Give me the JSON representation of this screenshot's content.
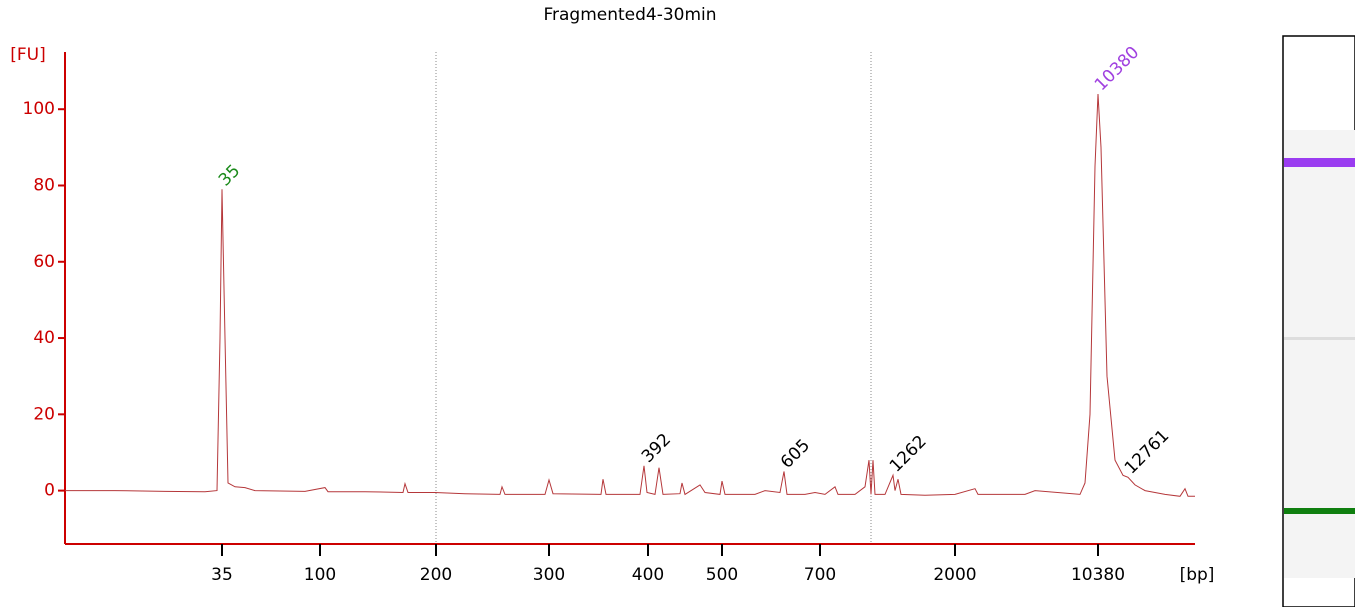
{
  "chart_data": {
    "type": "line",
    "title": "Fragmented4-30min",
    "ylabel": "[FU]",
    "xlabel": "[bp]",
    "axis_color": "#cc0000",
    "xlim": [
      0,
      113
    ],
    "ylim": [
      -14,
      115
    ],
    "yticks": [
      0,
      20,
      40,
      60,
      80,
      100
    ],
    "xticks": [
      {
        "value": 15.7,
        "label": "35"
      },
      {
        "value": 25.5,
        "label": "100"
      },
      {
        "value": 37.1,
        "label": "200"
      },
      {
        "value": 48.4,
        "label": "300"
      },
      {
        "value": 58.3,
        "label": "400"
      },
      {
        "value": 65.7,
        "label": "500"
      },
      {
        "value": 75.5,
        "label": "700"
      },
      {
        "value": 89,
        "label": "2000"
      },
      {
        "value": 103.3,
        "label": "10380"
      }
    ],
    "markers": [
      37.1,
      80.6
    ],
    "series": [
      {
        "color": "#b5373a",
        "x": [
          0,
          5,
          10,
          14,
          15.2,
          15.5,
          15.7,
          16,
          16.3,
          17,
          18,
          19,
          24,
          26,
          26.3,
          30,
          33.8,
          34,
          34.3,
          37,
          40,
          43.5,
          43.7,
          44,
          48,
          48.4,
          48.8,
          53.6,
          53.8,
          54.1,
          57.5,
          57.9,
          58.2,
          59,
          59.4,
          59.8,
          61.5,
          61.7,
          62,
          63.5,
          64,
          65.5,
          65.7,
          66,
          69,
          70,
          71.5,
          71.9,
          72.2,
          74,
          75,
          76,
          77,
          77.3,
          79,
          80,
          80.4,
          80.6,
          80.8,
          81,
          82,
          82.8,
          83,
          83.3,
          83.6,
          86,
          89,
          91,
          91.3,
          96,
          97,
          101.5,
          102,
          102.5,
          103,
          103.3,
          103.6,
          104.2,
          105,
          105.8,
          106.3,
          107,
          108,
          110,
          111.5,
          112,
          112.3,
          113
        ],
        "values": [
          0,
          0,
          -0.2,
          -0.3,
          0,
          40,
          79,
          40,
          2,
          1,
          0.8,
          0,
          -0.2,
          0.8,
          -0.3,
          -0.3,
          -0.5,
          1.8,
          -0.5,
          -0.5,
          -0.8,
          -1,
          1,
          -1,
          -1,
          2.8,
          -0.8,
          -1,
          3,
          -1,
          -1,
          6.5,
          -0.5,
          -1,
          6,
          -1,
          -0.8,
          2,
          -1,
          1.5,
          -0.5,
          -1,
          2.5,
          -1,
          -1,
          0,
          -0.5,
          5,
          -1,
          -1,
          -0.5,
          -1,
          1,
          -1,
          -1,
          1,
          8,
          -1,
          8,
          -1,
          -1,
          4,
          0,
          3,
          -1,
          -1.2,
          -1,
          0.5,
          -1,
          -1,
          0,
          -1,
          2,
          20,
          85,
          104,
          90,
          30,
          8,
          4,
          3.5,
          1.5,
          0,
          -1,
          -1.5,
          0.5,
          -1.5,
          -1.5
        ]
      }
    ],
    "peaks": [
      {
        "label": "35",
        "x": 15.7,
        "y": 79,
        "color": "#1a8a1a"
      },
      {
        "label": "392",
        "x": 58.0,
        "y": 6.5,
        "color": "#000000"
      },
      {
        "label": "605",
        "x": 71.9,
        "y": 5,
        "color": "#000000"
      },
      {
        "label": "1262",
        "x": 82.8,
        "y": 4,
        "color": "#000000"
      },
      {
        "label": "10380",
        "x": 103.3,
        "y": 104,
        "color": "#a040e0"
      },
      {
        "label": "12761",
        "x": 106.3,
        "y": 3.5,
        "color": "#000000"
      }
    ]
  }
}
